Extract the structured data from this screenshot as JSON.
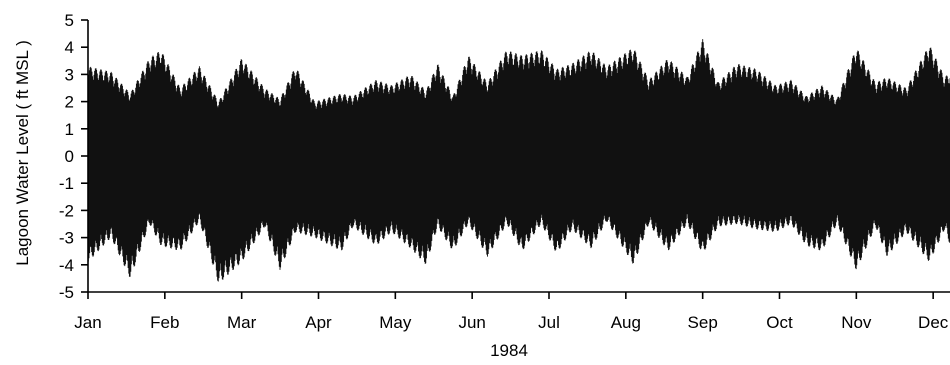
{
  "chart_data": {
    "type": "line",
    "title": "",
    "xlabel": "1984",
    "ylabel": "Lagoon Water Level  ( ft MSL )",
    "x_categories": [
      "Jan",
      "Feb",
      "Mar",
      "Apr",
      "May",
      "Jun",
      "Jul",
      "Aug",
      "Sep",
      "Oct",
      "Nov",
      "Dec"
    ],
    "ylim": [
      -5,
      5
    ],
    "y_ticks": [
      5,
      4,
      3,
      2,
      1,
      0,
      -1,
      -2,
      -3,
      -4,
      -5
    ],
    "grid": false,
    "legend": "none",
    "series": [
      {
        "description": "Tidal water level: semi-diurnal oscillation with spring-neap envelope over 1984",
        "envelope_max": [
          [
            0.0,
            3.3
          ],
          [
            0.3,
            3.1
          ],
          [
            0.55,
            2.3
          ],
          [
            0.8,
            3.6
          ],
          [
            0.95,
            3.9
          ],
          [
            1.2,
            2.5
          ],
          [
            1.45,
            3.3
          ],
          [
            1.7,
            2.0
          ],
          [
            2.0,
            3.6
          ],
          [
            2.3,
            2.5
          ],
          [
            2.5,
            2.1
          ],
          [
            2.7,
            3.3
          ],
          [
            2.95,
            2.0
          ],
          [
            3.3,
            2.3
          ],
          [
            3.45,
            2.2
          ],
          [
            3.75,
            2.8
          ],
          [
            3.95,
            2.6
          ],
          [
            4.2,
            3.0
          ],
          [
            4.4,
            2.4
          ],
          [
            4.55,
            3.4
          ],
          [
            4.75,
            2.2
          ],
          [
            4.95,
            3.7
          ],
          [
            5.2,
            2.7
          ],
          [
            5.45,
            3.9
          ],
          [
            5.65,
            3.7
          ],
          [
            5.9,
            3.9
          ],
          [
            6.1,
            3.2
          ],
          [
            6.3,
            3.4
          ],
          [
            6.55,
            3.9
          ],
          [
            6.75,
            3.3
          ],
          [
            7.1,
            4.0
          ],
          [
            7.3,
            2.8
          ],
          [
            7.55,
            3.6
          ],
          [
            7.8,
            2.9
          ],
          [
            8.0,
            4.3
          ],
          [
            8.2,
            2.7
          ],
          [
            8.45,
            3.4
          ],
          [
            8.7,
            3.2
          ],
          [
            8.95,
            2.6
          ],
          [
            9.15,
            2.8
          ],
          [
            9.35,
            2.2
          ],
          [
            9.55,
            2.6
          ],
          [
            9.75,
            2.1
          ],
          [
            10.0,
            4.0
          ],
          [
            10.25,
            2.7
          ],
          [
            10.4,
            2.9
          ],
          [
            10.65,
            2.5
          ],
          [
            10.95,
            4.1
          ],
          [
            11.15,
            2.9
          ],
          [
            11.35,
            3.4
          ],
          [
            11.5,
            2.8
          ],
          [
            11.7,
            3.8
          ],
          [
            11.9,
            2.9
          ]
        ],
        "envelope_min": [
          [
            0.0,
            -3.9
          ],
          [
            0.3,
            -3.0
          ],
          [
            0.55,
            -4.5
          ],
          [
            0.8,
            -2.5
          ],
          [
            0.95,
            -3.3
          ],
          [
            1.2,
            -3.5
          ],
          [
            1.45,
            -2.4
          ],
          [
            1.7,
            -4.7
          ],
          [
            2.0,
            -3.9
          ],
          [
            2.3,
            -2.6
          ],
          [
            2.5,
            -4.2
          ],
          [
            2.7,
            -2.8
          ],
          [
            2.95,
            -3.0
          ],
          [
            3.3,
            -3.5
          ],
          [
            3.45,
            -2.6
          ],
          [
            3.75,
            -3.3
          ],
          [
            3.95,
            -2.8
          ],
          [
            4.2,
            -3.4
          ],
          [
            4.4,
            -4.0
          ],
          [
            4.55,
            -2.6
          ],
          [
            4.75,
            -3.5
          ],
          [
            4.95,
            -2.5
          ],
          [
            5.2,
            -3.7
          ],
          [
            5.45,
            -2.5
          ],
          [
            5.65,
            -3.5
          ],
          [
            5.9,
            -2.5
          ],
          [
            6.1,
            -3.6
          ],
          [
            6.3,
            -2.7
          ],
          [
            6.55,
            -3.4
          ],
          [
            6.75,
            -2.4
          ],
          [
            7.1,
            -4.0
          ],
          [
            7.3,
            -2.5
          ],
          [
            7.55,
            -3.5
          ],
          [
            7.8,
            -2.5
          ],
          [
            8.0,
            -3.6
          ],
          [
            8.2,
            -2.6
          ],
          [
            8.45,
            -2.5
          ],
          [
            8.7,
            -2.7
          ],
          [
            8.95,
            -2.8
          ],
          [
            9.15,
            -2.5
          ],
          [
            9.35,
            -3.3
          ],
          [
            9.55,
            -3.5
          ],
          [
            9.75,
            -2.5
          ],
          [
            10.0,
            -4.2
          ],
          [
            10.25,
            -2.6
          ],
          [
            10.4,
            -3.7
          ],
          [
            10.65,
            -2.8
          ],
          [
            10.95,
            -3.9
          ],
          [
            11.15,
            -2.7
          ],
          [
            11.35,
            -4.3
          ],
          [
            11.5,
            -2.9
          ],
          [
            11.7,
            -3.8
          ],
          [
            11.9,
            -2.8
          ]
        ]
      }
    ]
  }
}
